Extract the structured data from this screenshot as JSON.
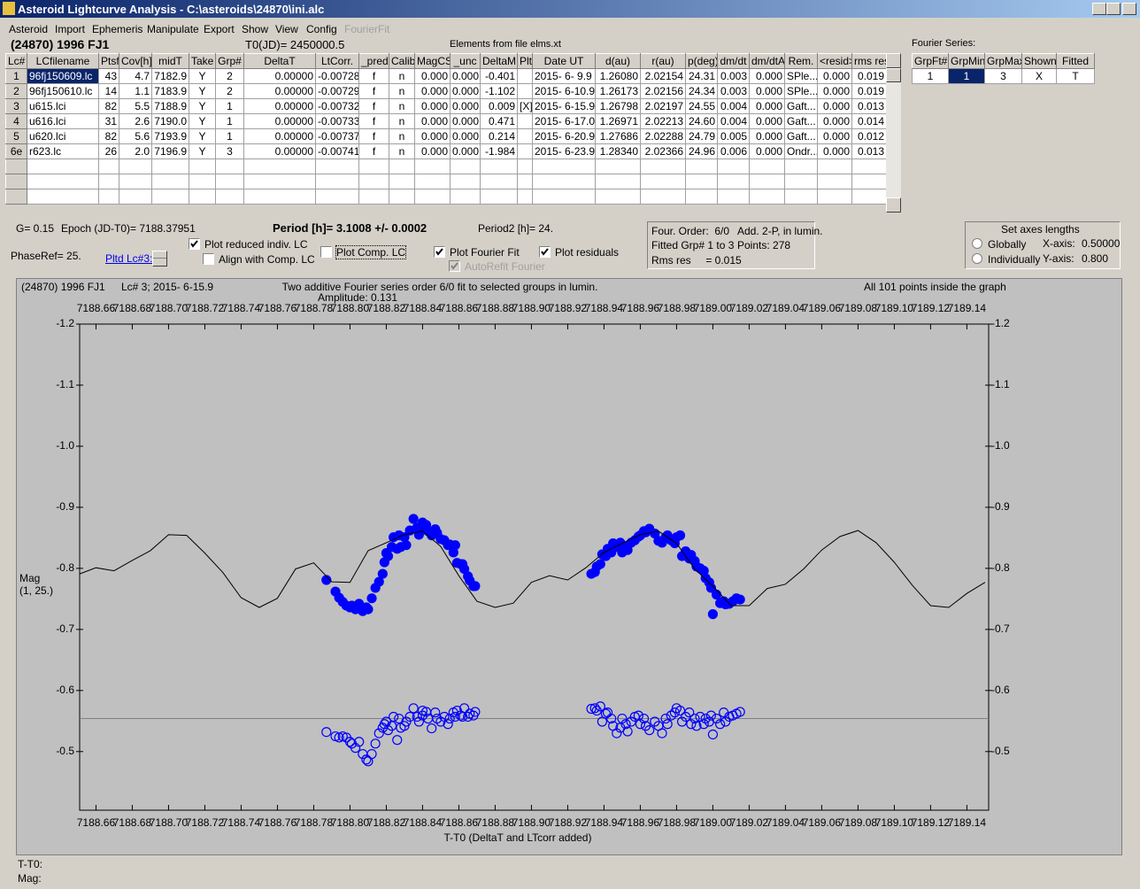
{
  "window": {
    "title": "Asteroid Lightcurve Analysis - C:\\asteroids\\24870\\ini.alc"
  },
  "menu": [
    "Asteroid",
    "Import",
    "Ephemeris",
    "Manipulate",
    "Export",
    "Show",
    "View",
    "Config",
    "FourierFit"
  ],
  "header": {
    "object": "(24870) 1996 FJ1",
    "t0": "T0(JD)= 2450000.5",
    "elements": "Elements from file elms.xt"
  },
  "table": {
    "columns": [
      "Lc#",
      "LCfilename",
      "Ptsf",
      "Cov[h]",
      "midT",
      "Take",
      "Grp#",
      "DeltaT",
      "LtCorr.",
      "_pred",
      "Calib",
      "MagCS",
      "_unc",
      "DeltaM",
      "Plt",
      "Date UT",
      "d(au)",
      "r(au)",
      "p(deg)",
      "dm/dt",
      "dm/dtA",
      "Rem.",
      "<resid>",
      "rms res"
    ],
    "rows": [
      [
        "1",
        "96fj150609.lc",
        "43",
        "4.7",
        "7182.9",
        "Y",
        "2",
        "0.00000",
        "-0.00728",
        "f",
        "n",
        "0.000",
        "0.000",
        "-0.401",
        null,
        "2015- 6- 9.9",
        "1.26080",
        "2.02154",
        "24.31",
        "0.003",
        "0.000",
        "SPle...",
        "0.000",
        "0.019"
      ],
      [
        "2",
        "96fj150610.lc",
        "14",
        "1.1",
        "7183.9",
        "Y",
        "2",
        "0.00000",
        "-0.00729",
        "f",
        "n",
        "0.000",
        "0.000",
        "-1.102",
        null,
        "2015- 6-10.9",
        "1.26173",
        "2.02156",
        "24.34",
        "0.003",
        "0.000",
        "SPle...",
        "0.000",
        "0.019"
      ],
      [
        "3",
        "u615.lci",
        "82",
        "5.5",
        "7188.9",
        "Y",
        "1",
        "0.00000",
        "-0.00732",
        "f",
        "n",
        "0.000",
        "0.000",
        "0.009",
        "[X]",
        "2015- 6-15.9",
        "1.26798",
        "2.02197",
        "24.55",
        "0.004",
        "0.000",
        "Gaft...",
        "0.000",
        "0.013"
      ],
      [
        "4",
        "u616.lci",
        "31",
        "2.6",
        "7190.0",
        "Y",
        "1",
        "0.00000",
        "-0.00733",
        "f",
        "n",
        "0.000",
        "0.000",
        "0.471",
        null,
        "2015- 6-17.0",
        "1.26971",
        "2.02213",
        "24.60",
        "0.004",
        "0.000",
        "Gaft...",
        "0.000",
        "0.014"
      ],
      [
        "5",
        "u620.lci",
        "82",
        "5.6",
        "7193.9",
        "Y",
        "1",
        "0.00000",
        "-0.00737",
        "f",
        "n",
        "0.000",
        "0.000",
        "0.214",
        null,
        "2015- 6-20.9",
        "1.27686",
        "2.02288",
        "24.79",
        "0.005",
        "0.000",
        "Gaft...",
        "0.000",
        "0.012"
      ],
      [
        "6e",
        "r623.lc",
        "26",
        "2.0",
        "7196.9",
        "Y",
        "3",
        "0.00000",
        "-0.00741",
        "f",
        "n",
        "0.000",
        "0.000",
        "-1.984",
        null,
        "2015- 6-23.9",
        "1.28340",
        "2.02366",
        "24.96",
        "0.006",
        "0.000",
        "Ondr...",
        "0.000",
        "0.013"
      ]
    ]
  },
  "fourier": {
    "label": "Fourier Series:",
    "columns": [
      "GrpFt#",
      "GrpMin",
      "GrpMax",
      "Shown",
      "Fitted"
    ],
    "rows": [
      [
        "1",
        "1",
        "3",
        "X",
        "T"
      ]
    ]
  },
  "info": {
    "g": "G= 0.15",
    "epoch": "Epoch (JD-T0)= 7188.37951",
    "period": "Period [h]= 3.1008 +/- 0.0002",
    "period2": "Period2 [h]= 24.",
    "phase_ref": "PhaseRef= 25.",
    "pltd_lc": "Pltd Lc#3:"
  },
  "options": [
    {
      "label": "Plot reduced indiv. LC",
      "checked": true,
      "enabled": true
    },
    {
      "label": "Align with Comp. LC",
      "checked": false,
      "enabled": true
    },
    {
      "label": "Plot Comp. LC",
      "checked": false,
      "enabled": true
    },
    {
      "label": "Plot Fourier Fit",
      "checked": true,
      "enabled": true
    },
    {
      "label": "AutoRefit Fourier",
      "checked": true,
      "enabled": false
    },
    {
      "label": "Plot residuals",
      "checked": true,
      "enabled": true
    }
  ],
  "fit_summary": {
    "order": "Four. Order:  6/0",
    "mode": "Add. 2-P, in lumin.",
    "groups": "Fitted Grp# 1 to 3",
    "points": "Points: 278",
    "rms": "Rms res     = 0.015"
  },
  "axes_lengths": {
    "title": "Set axes lengths",
    "options": [
      {
        "label": "Globally",
        "selected": false
      },
      {
        "label": "Individually",
        "selected": false
      }
    ],
    "x_label": "X-axis:",
    "x_value": "0.50000",
    "y_label": "Y-axis:",
    "y_value": "0.800"
  },
  "chart_data": {
    "type": "scatter",
    "object": "(24870) 1996 FJ1",
    "subtitle": "Lc# 3; 2015- 6-15.9",
    "title": "Two additive Fourier series order 6/0 fit to selected groups in lumin.",
    "annotation": "Amplitude: 0.131",
    "note": "All 101 points inside the graph",
    "xlabel": "T-T0 (DeltaT and LTcorr added)",
    "ylabel": "Mag",
    "ylabel_sub": "(1, 25.)",
    "xlim": [
      7188.651,
      7189.152
    ],
    "ylim": [
      -1.2,
      -0.404
    ],
    "invert_y": true,
    "xticks": [
      7188.66,
      7188.68,
      {
        "value": 7188.7,
        "label": "7188.70"
      },
      7188.72,
      7188.74,
      7188.76,
      7188.78,
      {
        "value": 7188.8,
        "label": "7188.80"
      },
      7188.82,
      7188.84,
      7188.86,
      7188.88,
      {
        "value": 7188.9,
        "label": "7188.90"
      },
      7188.92,
      7188.94,
      7188.96,
      7188.98,
      {
        "value": 7189,
        "label": "7189.00"
      },
      7189.02,
      7189.04,
      7189.06,
      7189.08,
      {
        "value": 7189.1,
        "label": "7189.10"
      },
      7189.12,
      7189.14
    ],
    "yticks": [
      -1.2,
      -1.1,
      {
        "value": -1,
        "label": "-1.0"
      },
      -0.9,
      -0.8,
      -0.7,
      -0.6,
      -0.5
    ],
    "x": [
      7188.787,
      7188.792,
      7188.794,
      7188.796,
      7188.798,
      7188.8,
      7188.801,
      7188.803,
      7188.805,
      7188.807,
      7188.809,
      7188.81,
      7188.812,
      7188.814,
      7188.816,
      7188.818,
      7188.819,
      7188.82,
      7188.821,
      7188.823,
      7188.824,
      7188.826,
      7188.827,
      7188.828,
      7188.83,
      7188.831,
      7188.833,
      7188.835,
      7188.837,
      7188.838,
      7188.84,
      7188.84,
      7188.842,
      7188.843,
      7188.845,
      7188.847,
      7188.848,
      7188.85,
      7188.852,
      7188.854,
      7188.855,
      7188.857,
      7188.858,
      7188.859,
      7188.861,
      7188.862,
      7188.863,
      7188.865,
      7188.866,
      7188.868,
      7188.869,
      7188.933,
      7188.935,
      7188.936,
      7188.938,
      7188.939,
      7188.941,
      7188.942,
      7188.944,
      7188.945,
      7188.947,
      7188.949,
      7188.95,
      7188.952,
      7188.953,
      7188.955,
      7188.957,
      7188.959,
      7188.96,
      7188.962,
      7188.963,
      7188.965,
      7188.968,
      7188.97,
      7188.972,
      7188.974,
      7188.975,
      7188.977,
      7188.979,
      7188.98,
      7188.982,
      7188.983,
      7188.985,
      7188.987,
      7188.988,
      7188.99,
      7188.991,
      7188.993,
      7188.995,
      7188.996,
      7188.998,
      7188.999,
      7189.0,
      7189.002,
      7189.004,
      7189.006,
      7189.007,
      7189.009,
      7189.011,
      7189.013,
      7189.015
    ],
    "series": [
      {
        "marker": "filled",
        "color": "#0000ff",
        "values": [
          -0.781,
          -0.762,
          -0.752,
          -0.745,
          -0.739,
          -0.736,
          -0.739,
          -0.733,
          -0.742,
          -0.73,
          -0.736,
          -0.733,
          -0.751,
          -0.768,
          -0.778,
          -0.791,
          -0.81,
          -0.825,
          -0.82,
          -0.835,
          -0.851,
          -0.832,
          -0.854,
          -0.835,
          -0.851,
          -0.838,
          -0.862,
          -0.881,
          -0.867,
          -0.855,
          -0.875,
          -0.864,
          -0.871,
          -0.861,
          -0.854,
          -0.864,
          -0.858,
          -0.848,
          -0.846,
          -0.838,
          -0.839,
          -0.826,
          -0.838,
          -0.809,
          -0.807,
          -0.807,
          -0.799,
          -0.787,
          -0.78,
          -0.771,
          -0.771,
          -0.791,
          -0.794,
          -0.803,
          -0.807,
          -0.823,
          -0.82,
          -0.832,
          -0.826,
          -0.841,
          -0.835,
          -0.842,
          -0.826,
          -0.836,
          -0.83,
          -0.842,
          -0.846,
          -0.852,
          -0.854,
          -0.861,
          -0.859,
          -0.865,
          -0.857,
          -0.845,
          -0.842,
          -0.851,
          -0.854,
          -0.846,
          -0.841,
          -0.851,
          -0.854,
          -0.82,
          -0.828,
          -0.816,
          -0.822,
          -0.812,
          -0.803,
          -0.8,
          -0.796,
          -0.784,
          -0.777,
          -0.768,
          -0.725,
          -0.757,
          -0.743,
          -0.746,
          -0.741,
          -0.742,
          -0.746,
          -0.751,
          -0.749
        ]
      },
      {
        "marker": "open",
        "color": "#0000ff",
        "values": [
          -0.532,
          -0.525,
          -0.523,
          -0.525,
          -0.523,
          -0.516,
          -0.513,
          -0.506,
          -0.516,
          -0.496,
          -0.487,
          -0.484,
          -0.496,
          -0.513,
          -0.53,
          -0.539,
          -0.545,
          -0.549,
          -0.535,
          -0.542,
          -0.557,
          -0.519,
          -0.554,
          -0.539,
          -0.542,
          -0.549,
          -0.557,
          -0.571,
          -0.557,
          -0.549,
          -0.567,
          -0.559,
          -0.565,
          -0.554,
          -0.538,
          -0.564,
          -0.554,
          -0.549,
          -0.557,
          -0.545,
          -0.554,
          -0.564,
          -0.557,
          -0.567,
          -0.559,
          -0.557,
          -0.571,
          -0.557,
          -0.562,
          -0.559,
          -0.565,
          -0.57,
          -0.571,
          -0.567,
          -0.574,
          -0.549,
          -0.562,
          -0.564,
          -0.554,
          -0.542,
          -0.53,
          -0.539,
          -0.554,
          -0.545,
          -0.533,
          -0.549,
          -0.557,
          -0.559,
          -0.545,
          -0.554,
          -0.542,
          -0.535,
          -0.549,
          -0.542,
          -0.53,
          -0.554,
          -0.545,
          -0.559,
          -0.564,
          -0.571,
          -0.567,
          -0.549,
          -0.557,
          -0.564,
          -0.545,
          -0.554,
          -0.542,
          -0.557,
          -0.545,
          -0.554,
          -0.549,
          -0.559,
          -0.528,
          -0.554,
          -0.545,
          -0.564,
          -0.549,
          -0.557,
          -0.559,
          -0.562,
          -0.565
        ]
      },
      {
        "type": "line",
        "color": "#000000",
        "x": [
          7188.651,
          7188.66,
          7188.67,
          7188.68,
          7188.69,
          7188.7,
          7188.71,
          7188.72,
          7188.73,
          7188.74,
          7188.75,
          7188.76,
          7188.77,
          7188.78,
          7188.79,
          7188.8,
          7188.81,
          7188.82,
          7188.83,
          7188.84,
          7188.85,
          7188.86,
          7188.87,
          7188.88,
          7188.89,
          7188.9,
          7188.91,
          7188.92,
          7188.93,
          7188.94,
          7188.95,
          7188.96,
          7188.97,
          7188.98,
          7188.99,
          7189.0,
          7189.01,
          7189.02,
          7189.03,
          7189.04,
          7189.05,
          7189.06,
          7189.07,
          7189.08,
          7189.09,
          7189.1,
          7189.11,
          7189.12,
          7189.13,
          7189.14,
          7189.15
        ],
        "values": [
          -0.791,
          -0.801,
          -0.796,
          -0.813,
          -0.829,
          -0.855,
          -0.854,
          -0.825,
          -0.793,
          -0.752,
          -0.736,
          -0.751,
          -0.799,
          -0.809,
          -0.778,
          -0.777,
          -0.829,
          -0.842,
          -0.855,
          -0.861,
          -0.836,
          -0.788,
          -0.746,
          -0.736,
          -0.743,
          -0.777,
          -0.788,
          -0.781,
          -0.801,
          -0.826,
          -0.841,
          -0.855,
          -0.861,
          -0.841,
          -0.799,
          -0.771,
          -0.739,
          -0.739,
          -0.767,
          -0.774,
          -0.799,
          -0.83,
          -0.852,
          -0.862,
          -0.842,
          -0.81,
          -0.772,
          -0.739,
          -0.736,
          -0.759,
          -0.777
        ]
      }
    ],
    "reference_line": {
      "value": -0.554,
      "color": "#808080"
    }
  },
  "status": {
    "t": "T-T0:",
    "mag": "Mag:"
  }
}
